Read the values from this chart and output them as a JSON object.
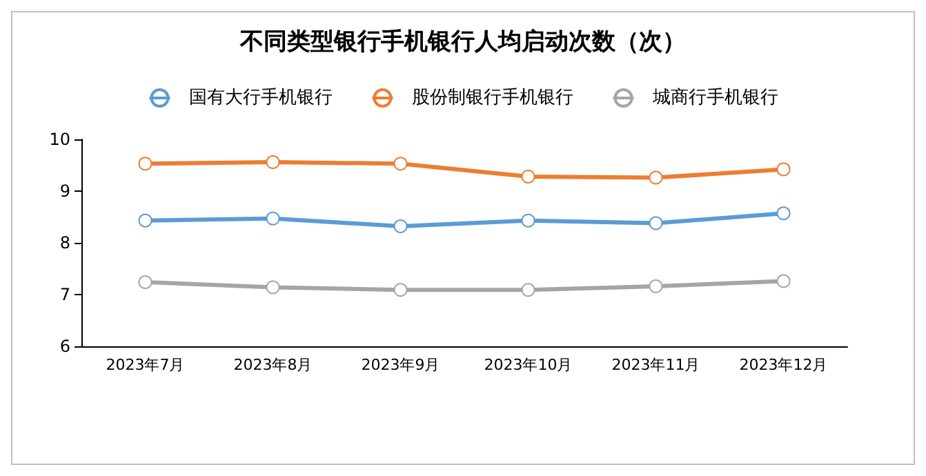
{
  "chart_data": {
    "type": "line",
    "title": "不同类型银行手机银行人均启动次数（次）",
    "categories": [
      "2023年7月",
      "2023年8月",
      "2023年9月",
      "2023年10月",
      "2023年11月",
      "2023年12月"
    ],
    "series": [
      {
        "name": "国有大行手机银行",
        "color": "#5b9bd5",
        "values": [
          8.43,
          8.47,
          8.32,
          8.43,
          8.38,
          8.57
        ]
      },
      {
        "name": "股份制银行手机银行",
        "color": "#ed7d31",
        "values": [
          9.53,
          9.56,
          9.53,
          9.28,
          9.26,
          9.42
        ]
      },
      {
        "name": "城商行手机银行",
        "color": "#a5a5a5",
        "values": [
          7.24,
          7.14,
          7.09,
          7.09,
          7.16,
          7.26
        ]
      }
    ],
    "ylim": [
      6,
      10
    ],
    "yticks": [
      6,
      7,
      8,
      9,
      10
    ],
    "grid": false,
    "legend": "top",
    "marker": "circle",
    "line_style": "solid"
  }
}
